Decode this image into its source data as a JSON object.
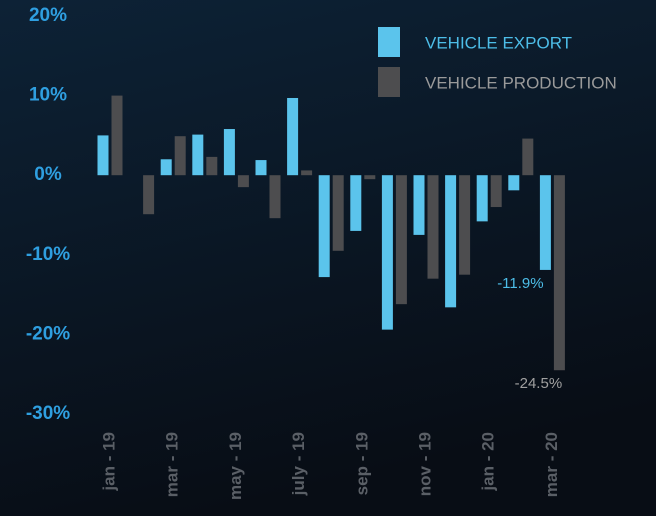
{
  "chart_data": {
    "type": "bar",
    "categories": [
      "jan - 19",
      null,
      "mar - 19",
      null,
      "may - 19",
      null,
      "july - 19",
      null,
      "sep - 19",
      null,
      "nov - 19",
      null,
      "jan - 20",
      null,
      "mar - 20"
    ],
    "series": [
      {
        "name": "VEHICLE EXPORT",
        "color": "#5bc4ec",
        "values": [
          5.0,
          0,
          2.0,
          5.1,
          5.8,
          1.9,
          9.7,
          -12.8,
          -7.0,
          -19.4,
          -7.5,
          -16.6,
          -5.8,
          -1.9,
          -11.9
        ],
        "value_labels": [
          null,
          null,
          null,
          null,
          null,
          null,
          null,
          null,
          null,
          null,
          null,
          null,
          null,
          null,
          "-11.9%"
        ]
      },
      {
        "name": "VEHICLE PRODUCTION",
        "color": "#4d4d4f",
        "values": [
          10.0,
          -4.9,
          4.9,
          2.3,
          -1.5,
          -5.4,
          0.6,
          -9.5,
          -0.5,
          -16.2,
          -13.0,
          -12.5,
          -4.0,
          4.6,
          -24.5
        ],
        "value_labels": [
          null,
          null,
          null,
          null,
          null,
          null,
          null,
          null,
          null,
          null,
          null,
          null,
          null,
          null,
          "-24.5%"
        ]
      }
    ],
    "ylim": [
      -30,
      20
    ],
    "yticks": [
      {
        "value": 20,
        "label": "20%"
      },
      {
        "value": 10,
        "label": "10%"
      },
      {
        "value": 0,
        "label": "0%"
      },
      {
        "value": -10,
        "label": "-10%"
      },
      {
        "value": -20,
        "label": "-20%"
      },
      {
        "value": -30,
        "label": "-30%"
      }
    ],
    "grid": false,
    "legend": "top-right"
  }
}
